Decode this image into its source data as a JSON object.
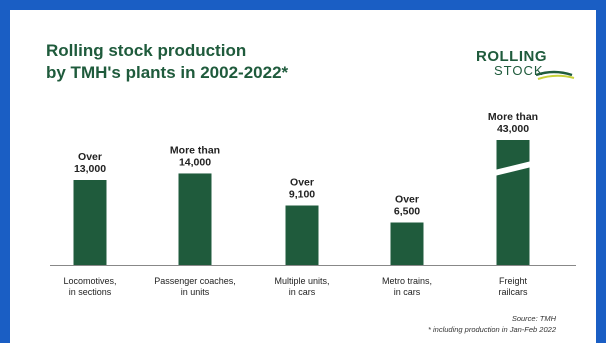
{
  "title_lines": [
    "Rolling stock production",
    "by TMH's plants in 2002-2022*"
  ],
  "logo": {
    "line1": "ROLLING",
    "line2": "STOCK"
  },
  "source": "Source: TMH",
  "footnote": "* including production in Jan-Feb 2022",
  "colors": {
    "bar": "#1f5b3c",
    "title": "#1f5b3c",
    "frame": "#1a5ec4",
    "baseline": "#888888"
  },
  "chart_data": {
    "type": "bar",
    "title": "Rolling stock production by TMH's plants in 2002-2022*",
    "categories": [
      [
        "Locomotives,",
        "in sections"
      ],
      [
        "Passenger coaches,",
        "in units"
      ],
      [
        "Multiple units,",
        "in cars"
      ],
      [
        "Metro trains,",
        "in cars"
      ],
      [
        "Freight",
        "railcars"
      ]
    ],
    "values": [
      13000,
      14000,
      9100,
      6500,
      43000
    ],
    "value_labels": [
      [
        "Over",
        "13,000"
      ],
      [
        "More than",
        "14,000"
      ],
      [
        "Over",
        "9,100"
      ],
      [
        "Over",
        "6,500"
      ],
      [
        "More than",
        "43,000"
      ]
    ],
    "broken_axis_bar": 4,
    "xlabel": "",
    "ylabel": ""
  }
}
